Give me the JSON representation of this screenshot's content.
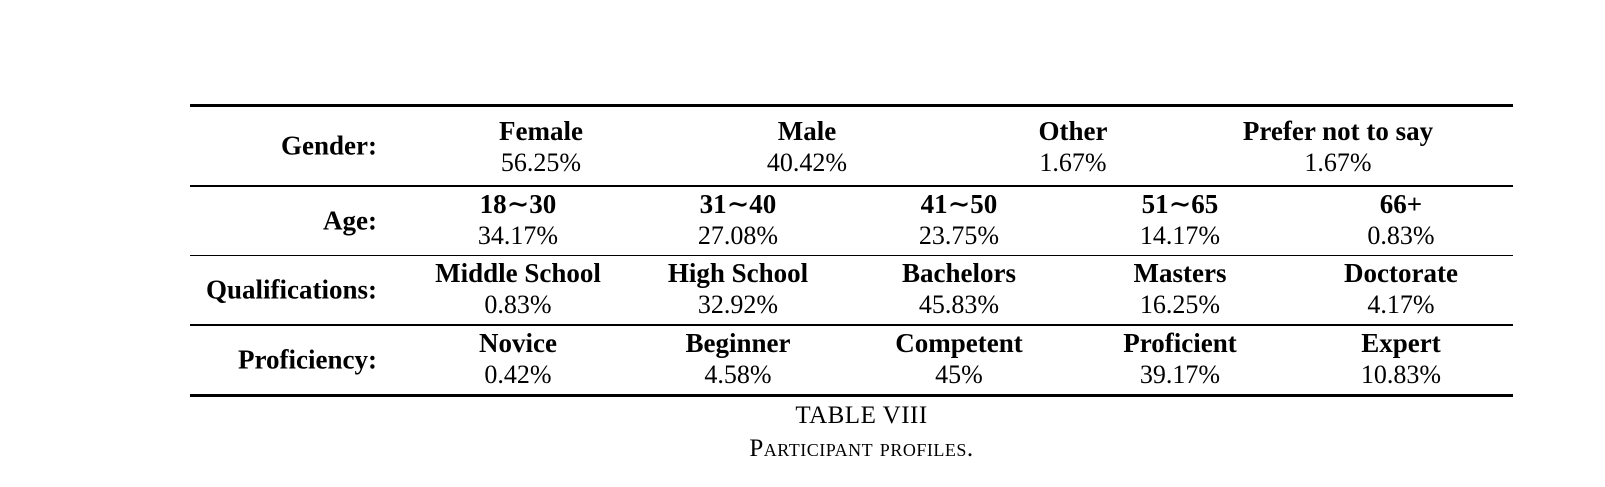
{
  "table": {
    "rows": [
      {
        "label": "Gender:",
        "cells": [
          {
            "head": "Female",
            "value": "56.25%"
          },
          {
            "head": "Male",
            "value": "40.42%"
          },
          {
            "head": "Other",
            "value": "1.67%"
          },
          {
            "head": "Prefer not to say",
            "value": "1.67%"
          }
        ]
      },
      {
        "label": "Age:",
        "cells": [
          {
            "head": "18∼30",
            "value": "34.17%"
          },
          {
            "head": "31∼40",
            "value": "27.08%"
          },
          {
            "head": "41∼50",
            "value": "23.75%"
          },
          {
            "head": "51∼65",
            "value": "14.17%"
          },
          {
            "head": "66+",
            "value": "0.83%"
          }
        ]
      },
      {
        "label": "Qualifications:",
        "cells": [
          {
            "head": "Middle School",
            "value": "0.83%"
          },
          {
            "head": "High School",
            "value": "32.92%"
          },
          {
            "head": "Bachelors",
            "value": "45.83%"
          },
          {
            "head": "Masters",
            "value": "16.25%"
          },
          {
            "head": "Doctorate",
            "value": "4.17%"
          }
        ]
      },
      {
        "label": "Proficiency:",
        "cells": [
          {
            "head": "Novice",
            "value": "0.42%"
          },
          {
            "head": "Beginner",
            "value": "4.58%"
          },
          {
            "head": "Competent",
            "value": "45%"
          },
          {
            "head": "Proficient",
            "value": "39.17%"
          },
          {
            "head": "Expert",
            "value": "10.83%"
          }
        ]
      }
    ]
  },
  "caption": {
    "number": "TABLE VIII",
    "title": "Participant profiles."
  }
}
